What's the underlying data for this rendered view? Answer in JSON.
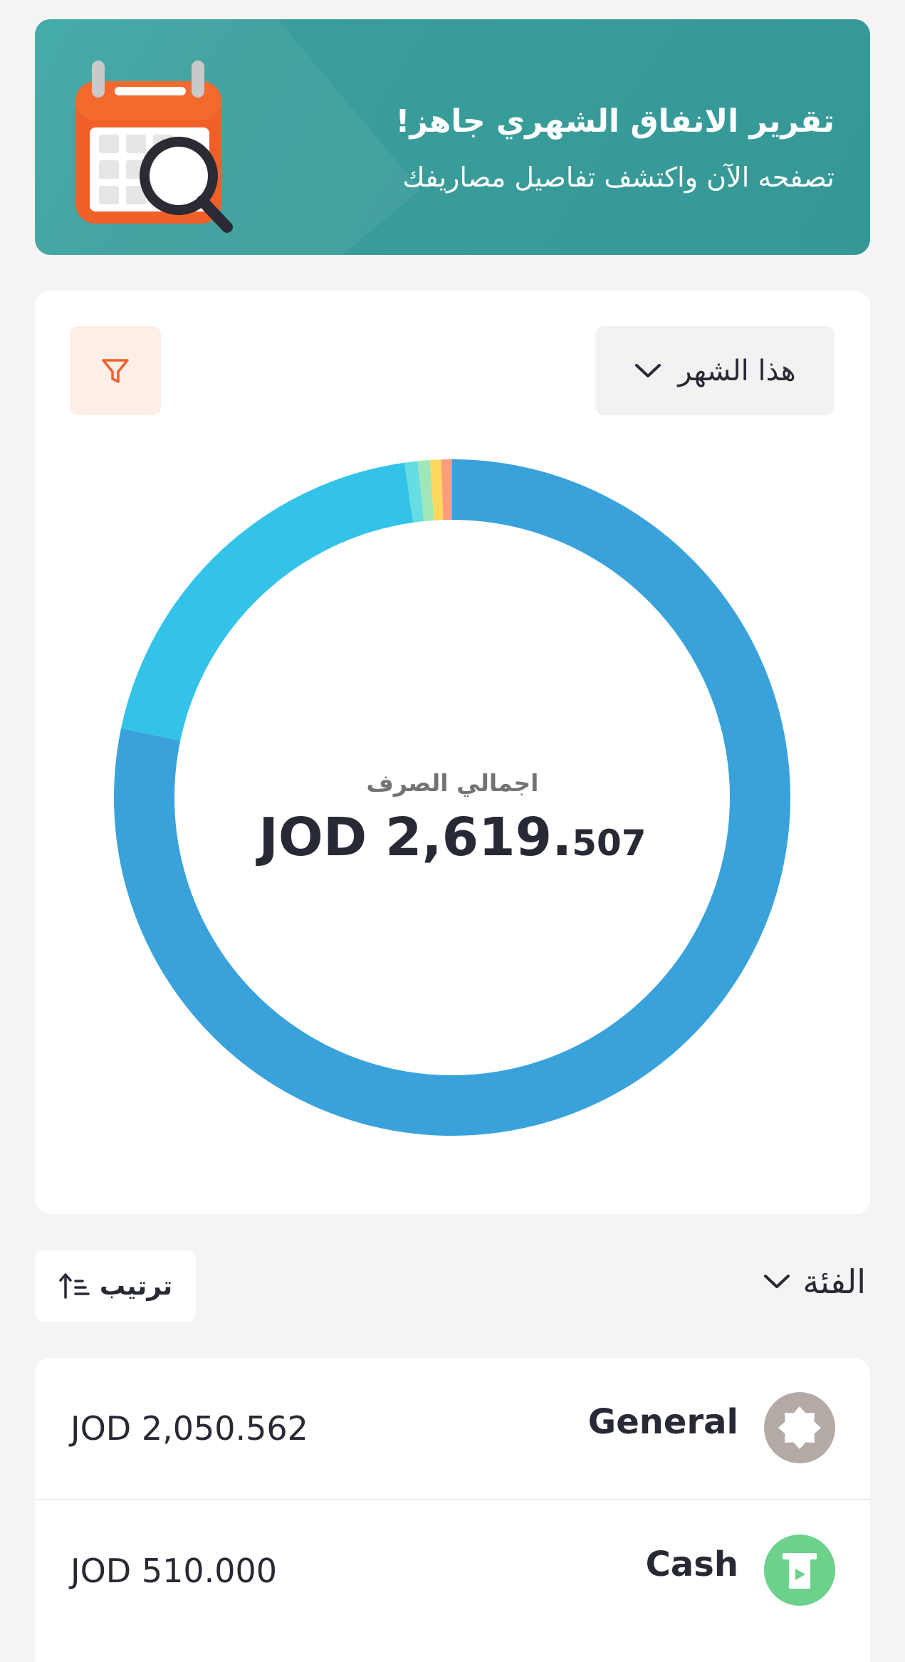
{
  "banner": {
    "title": "تقرير الانفاق الشهري جاهز!",
    "subtitle": "تصفحه الآن واكتشف تفاصيل مصاريفك",
    "icon": "calendar-search-icon"
  },
  "filters": {
    "period_label": "هذا الشهر",
    "period_icon": "chevron-down-icon",
    "filter_icon": "filter-icon"
  },
  "chart_data": {
    "type": "pie",
    "total_label": "اجمالي الصرف",
    "total_currency": "JOD",
    "total_integer": "2,619.",
    "total_decimal": "507",
    "slices": [
      {
        "value": 2050.562,
        "color": "#39a2db"
      },
      {
        "value": 510.0,
        "color": "#33c3e9"
      },
      {
        "value": 16.5,
        "color": "#66dde2"
      },
      {
        "value": 15.0,
        "color": "#a0e6b8"
      },
      {
        "value": 14.0,
        "color": "#fdd85d"
      },
      {
        "value": 13.445,
        "color": "#fc9c7c"
      }
    ]
  },
  "list_header": {
    "category_label": "الفئة",
    "sort_label": "ترتيب",
    "sort_icon": "sort-ascending-icon"
  },
  "categories": [
    {
      "name": "General",
      "amount": "JOD 2,050.562",
      "icon": "badge-star-icon",
      "color": "#b3aaa5"
    },
    {
      "name": "Cash",
      "amount": "JOD 510.000",
      "icon": "cash-withdraw-icon",
      "color": "#6cd18a"
    }
  ]
}
